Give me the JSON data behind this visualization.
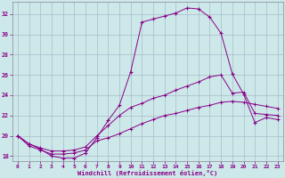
{
  "background_color": "#cce8e8",
  "grid_color": "#aabbcc",
  "line_color": "#880088",
  "xlabel": "Windchill (Refroidissement éolien,°C)",
  "xlim": [
    -0.5,
    23.5
  ],
  "ylim": [
    17.5,
    33.2
  ],
  "yticks": [
    18,
    20,
    22,
    24,
    26,
    28,
    30,
    32
  ],
  "xticks": [
    0,
    1,
    2,
    3,
    4,
    5,
    6,
    7,
    8,
    9,
    10,
    11,
    12,
    13,
    14,
    15,
    16,
    17,
    18,
    19,
    20,
    21,
    22,
    23
  ],
  "series1_x": [
    0,
    1,
    2,
    3,
    4,
    5,
    6,
    7,
    8,
    9,
    10,
    11,
    12,
    13,
    14,
    15,
    16,
    17,
    18,
    19,
    20,
    21,
    22,
    23
  ],
  "series1_y": [
    20.0,
    19.2,
    18.7,
    18.0,
    17.8,
    17.8,
    18.3,
    19.8,
    21.5,
    23.0,
    26.3,
    31.2,
    31.5,
    31.8,
    32.1,
    32.6,
    32.5,
    31.7,
    30.1,
    26.1,
    24.1,
    21.3,
    21.8,
    21.6
  ],
  "series2_x": [
    0,
    1,
    2,
    3,
    4,
    5,
    6,
    7,
    8,
    9,
    10,
    11,
    12,
    13,
    14,
    15,
    16,
    17,
    18,
    19,
    20,
    21,
    22,
    23
  ],
  "series2_y": [
    20.0,
    19.2,
    18.8,
    18.5,
    18.5,
    18.6,
    18.9,
    20.0,
    21.0,
    22.0,
    22.8,
    23.2,
    23.7,
    24.0,
    24.5,
    24.9,
    25.3,
    25.8,
    26.0,
    24.2,
    24.3,
    22.2,
    22.1,
    22.0
  ],
  "series3_x": [
    0,
    1,
    2,
    3,
    4,
    5,
    6,
    7,
    8,
    9,
    10,
    11,
    12,
    13,
    14,
    15,
    16,
    17,
    18,
    19,
    20,
    21,
    22,
    23
  ],
  "series3_y": [
    20.0,
    19.0,
    18.6,
    18.2,
    18.2,
    18.3,
    18.6,
    19.5,
    19.8,
    20.2,
    20.7,
    21.2,
    21.6,
    22.0,
    22.2,
    22.5,
    22.8,
    23.0,
    23.3,
    23.4,
    23.3,
    23.1,
    22.9,
    22.7
  ]
}
